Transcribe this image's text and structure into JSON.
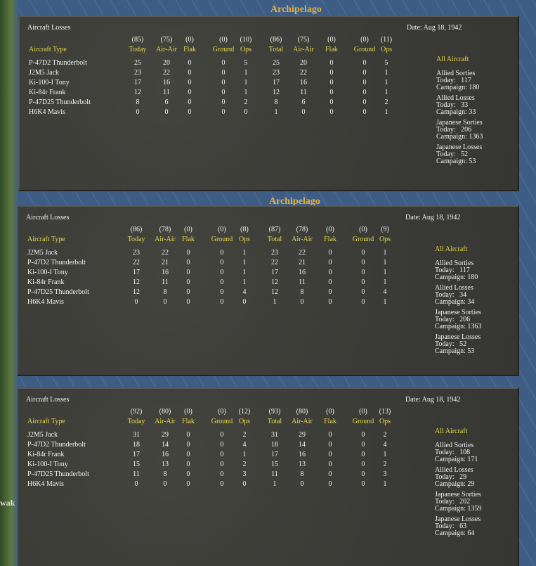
{
  "map_labels": [
    "Archipelago",
    "Archipelago",
    "wak"
  ],
  "panels": [
    {
      "title": "Aircraft Losses",
      "date": "Date: Aug 18, 1942",
      "totals": [
        "(85)",
        "(75)",
        "(0)",
        "(0)",
        "(10)",
        "(86)",
        "(75)",
        "(0)",
        "(0)",
        "(11)"
      ],
      "columns": [
        "Aircraft Type",
        "Today",
        "Air-Air",
        "Flak",
        "Ground",
        "Ops",
        "Total",
        "Air-Air",
        "Flak",
        "Ground",
        "Ops"
      ],
      "rows": [
        [
          "P-47D2 Thunderbolt",
          25,
          20,
          0,
          0,
          5,
          25,
          20,
          0,
          0,
          5
        ],
        [
          "J2M5 Jack",
          23,
          22,
          0,
          0,
          1,
          23,
          22,
          0,
          0,
          1
        ],
        [
          "Ki-100-I Tony",
          17,
          16,
          0,
          0,
          1,
          17,
          16,
          0,
          0,
          1
        ],
        [
          "Ki-84r Frank",
          12,
          11,
          0,
          0,
          1,
          12,
          11,
          0,
          0,
          1
        ],
        [
          "P-47D25 Thunderbolt",
          8,
          6,
          0,
          0,
          2,
          8,
          6,
          0,
          0,
          2
        ],
        [
          "H6K4 Mavis",
          0,
          0,
          0,
          0,
          0,
          1,
          0,
          0,
          0,
          1
        ]
      ],
      "summary": {
        "heading": "All Aircraft",
        "groups": [
          {
            "label": "Allied Sorties",
            "today": "Today:   117",
            "campaign": "Campaign: 180"
          },
          {
            "label": "Allied Losses",
            "today": "Today:   33",
            "campaign": "Campaign: 33"
          },
          {
            "label": "Japanese Sorties",
            "today": "Today:   206",
            "campaign": "Campaign: 1363"
          },
          {
            "label": "Japanese Losses",
            "today": "Today:   52",
            "campaign": "Campaign: 53"
          }
        ]
      }
    },
    {
      "title": "Aircraft Losses",
      "date": "Date: Aug 18, 1942",
      "totals": [
        "(86)",
        "(78)",
        "(0)",
        "(0)",
        "(8)",
        "(87)",
        "(78)",
        "(0)",
        "(0)",
        "(9)"
      ],
      "columns": [
        "Aircraft Type",
        "Today",
        "Air-Air",
        "Flak",
        "Ground",
        "Ops",
        "Total",
        "Air-Air",
        "Flak",
        "Ground",
        "Ops"
      ],
      "rows": [
        [
          "J2M5 Jack",
          23,
          22,
          0,
          0,
          1,
          23,
          22,
          0,
          0,
          1
        ],
        [
          "P-47D2 Thunderbolt",
          22,
          21,
          0,
          0,
          1,
          22,
          21,
          0,
          0,
          1
        ],
        [
          "Ki-100-I Tony",
          17,
          16,
          0,
          0,
          1,
          17,
          16,
          0,
          0,
          1
        ],
        [
          "Ki-84r Frank",
          12,
          11,
          0,
          0,
          1,
          12,
          11,
          0,
          0,
          1
        ],
        [
          "P-47D25 Thunderbolt",
          12,
          8,
          0,
          0,
          4,
          12,
          8,
          0,
          0,
          4
        ],
        [
          "H6K4 Mavis",
          0,
          0,
          0,
          0,
          0,
          1,
          0,
          0,
          0,
          1
        ]
      ],
      "summary": {
        "heading": "All Aircraft",
        "groups": [
          {
            "label": "Allied Sorties",
            "today": "Today:   117",
            "campaign": "Campaign: 180"
          },
          {
            "label": "Allied Losses",
            "today": "Today:   34",
            "campaign": "Campaign: 34"
          },
          {
            "label": "Japanese Sorties",
            "today": "Today:   206",
            "campaign": "Campaign: 1363"
          },
          {
            "label": "Japanese Losses",
            "today": "Today:   52",
            "campaign": "Campaign: 53"
          }
        ]
      }
    },
    {
      "title": "Aircraft Losses",
      "date": "Date: Aug 18, 1942",
      "totals": [
        "(92)",
        "(80)",
        "(0)",
        "(0)",
        "(12)",
        "(93)",
        "(80)",
        "(0)",
        "(0)",
        "(13)"
      ],
      "columns": [
        "Aircraft Type",
        "Today",
        "Air-Air",
        "Flak",
        "Ground",
        "Ops",
        "Total",
        "Air-Air",
        "Flak",
        "Ground",
        "Ops"
      ],
      "rows": [
        [
          "J2M5 Jack",
          31,
          29,
          0,
          0,
          2,
          31,
          29,
          0,
          0,
          2
        ],
        [
          "P-47D2 Thunderbolt",
          18,
          14,
          0,
          0,
          4,
          18,
          14,
          0,
          0,
          4
        ],
        [
          "Ki-84r Frank",
          17,
          16,
          0,
          0,
          1,
          17,
          16,
          0,
          0,
          1
        ],
        [
          "Ki-100-I Tony",
          15,
          13,
          0,
          0,
          2,
          15,
          13,
          0,
          0,
          2
        ],
        [
          "P-47D25 Thunderbolt",
          11,
          8,
          0,
          0,
          3,
          11,
          8,
          0,
          0,
          3
        ],
        [
          "H6K4 Mavis",
          0,
          0,
          0,
          0,
          0,
          1,
          0,
          0,
          0,
          1
        ]
      ],
      "summary": {
        "heading": "All Aircraft",
        "groups": [
          {
            "label": "Allied Sorties",
            "today": "Today:   108",
            "campaign": "Campaign: 171"
          },
          {
            "label": "Allied Losses",
            "today": "Today:   29",
            "campaign": "Campaign: 29"
          },
          {
            "label": "Japanese Sorties",
            "today": "Today:   202",
            "campaign": "Campaign: 1359"
          },
          {
            "label": "Japanese Losses",
            "today": "Today:   63",
            "campaign": "Campaign: 64"
          }
        ]
      }
    }
  ]
}
